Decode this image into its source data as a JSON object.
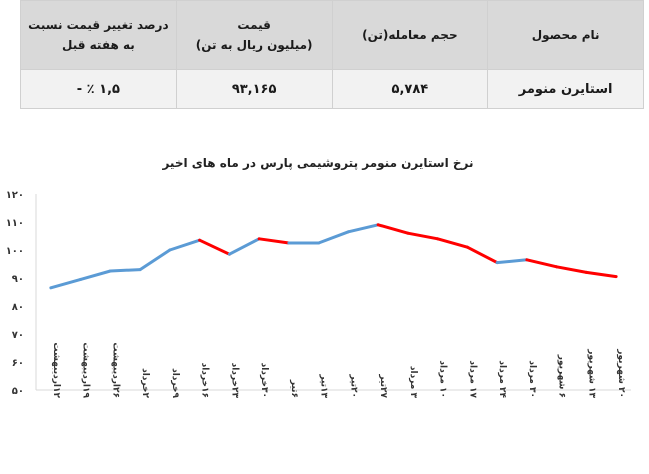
{
  "table": {
    "headers": {
      "product": "نام محصول",
      "volume": "حجم معامله(تن)",
      "price_line1": "قیمت",
      "price_line2": "(میلیون ریال به تن)",
      "change": "درصد تغییر قیمت نسبت به هفته قبل"
    },
    "row": {
      "product": "استایرن منومر",
      "volume": "۵,۷۸۴",
      "price": "۹۳,۱۶۵",
      "change": "۱,۵ ٪ -"
    },
    "colors": {
      "header_bg": "#d9d9d9",
      "row_bg": "#f2f2f2",
      "negative": "#e02020"
    }
  },
  "chart_data": {
    "type": "line",
    "title": "نرخ استایرن منومر پتروشیمی پارس در ماه های اخیر",
    "ytick_labels": [
      "۱۲۰",
      "۱۱۰",
      "۱۰۰",
      "۹۰",
      "۸۰",
      "۷۰",
      "۶۰",
      "۵۰"
    ],
    "ytick_values": [
      120,
      110,
      100,
      90,
      80,
      70,
      60,
      50
    ],
    "ylim": [
      50,
      120
    ],
    "categories": [
      "۱۲اردیبهشت",
      "۱۹اردیبهشت",
      "۲۶اردیبهشت",
      "۲خرداد",
      "۹خرداد",
      "۱۶خرداد",
      "۲۳خرداد",
      "۳۰خرداد",
      "۶تیر",
      "۱۳تیر",
      "۲۰تیر",
      "۲۷تیر",
      "۳ مرداد",
      "۱۰ مرداد",
      "۱۷ مرداد",
      "۲۴ مرداد",
      "۳۰ مرداد",
      "۶ شهریور",
      "۱۳ شهریور",
      "۲۰ شهریور"
    ],
    "values": [
      86.5,
      89.5,
      92.5,
      93,
      100,
      103.5,
      98.5,
      104,
      102.5,
      102.5,
      106.5,
      109,
      106,
      104,
      101,
      95.5,
      96.5,
      94,
      92,
      90.5
    ],
    "segment_colors": {
      "rising": "#5b9bd5",
      "falling": "#ff0000"
    },
    "grid": false
  }
}
